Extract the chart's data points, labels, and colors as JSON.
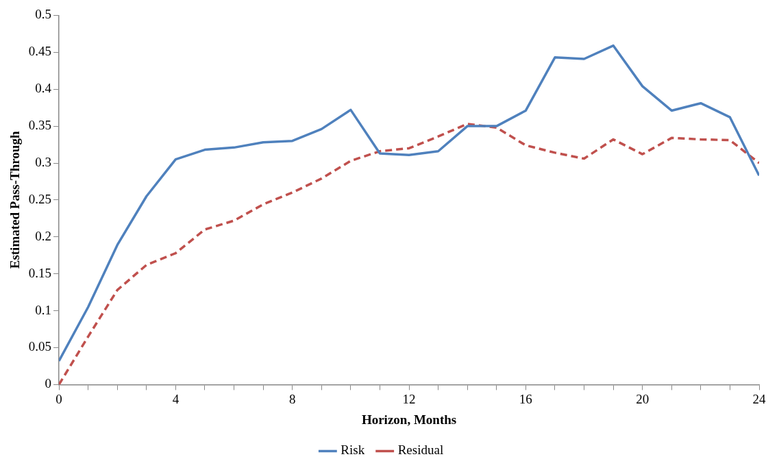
{
  "chart_data": {
    "type": "line",
    "xlabel": "Horizon, Months",
    "ylabel": "Estimated Pass-Through",
    "x": [
      0,
      1,
      2,
      3,
      4,
      5,
      6,
      7,
      8,
      9,
      10,
      11,
      12,
      13,
      14,
      15,
      16,
      17,
      18,
      19,
      20,
      21,
      22,
      23,
      24
    ],
    "series": [
      {
        "name": "Risk",
        "color": "#4f81bd",
        "line_style": "solid",
        "values": [
          0.032,
          0.105,
          0.189,
          0.255,
          0.305,
          0.318,
          0.321,
          0.328,
          0.33,
          0.346,
          0.372,
          0.313,
          0.311,
          0.316,
          0.35,
          0.35,
          0.371,
          0.443,
          0.441,
          0.459,
          0.404,
          0.371,
          0.381,
          0.362,
          0.283
        ]
      },
      {
        "name": "Residual",
        "color": "#c0504d",
        "line_style": "dashed",
        "values": [
          0.0,
          0.065,
          0.128,
          0.162,
          0.178,
          0.21,
          0.222,
          0.244,
          0.26,
          0.279,
          0.303,
          0.316,
          0.32,
          0.336,
          0.353,
          0.348,
          0.324,
          0.314,
          0.306,
          0.332,
          0.312,
          0.334,
          0.332,
          0.331,
          0.3
        ]
      }
    ],
    "xlim": [
      0,
      24
    ],
    "xticks": [
      0,
      {
        "value": 1,
        "label": null
      },
      {
        "value": 2,
        "label": null
      },
      {
        "value": 3,
        "label": null
      },
      4,
      {
        "value": 5,
        "label": null
      },
      {
        "value": 6,
        "label": null
      },
      {
        "value": 7,
        "label": null
      },
      8,
      {
        "value": 9,
        "label": null
      },
      {
        "value": 10,
        "label": null
      },
      {
        "value": 11,
        "label": null
      },
      12,
      {
        "value": 13,
        "label": null
      },
      {
        "value": 14,
        "label": null
      },
      {
        "value": 15,
        "label": null
      },
      16,
      {
        "value": 17,
        "label": null
      },
      {
        "value": 18,
        "label": null
      },
      {
        "value": 19,
        "label": null
      },
      20,
      {
        "value": 21,
        "label": null
      },
      {
        "value": 22,
        "label": null
      },
      {
        "value": 23,
        "label": null
      },
      24
    ],
    "ylim": [
      0,
      0.5
    ],
    "yticks": [
      0,
      0.05,
      0.1,
      0.15,
      0.2,
      0.25,
      0.3,
      0.35,
      0.4,
      0.45,
      0.5
    ],
    "grid": false,
    "legend": "bottom",
    "marker": "none"
  }
}
